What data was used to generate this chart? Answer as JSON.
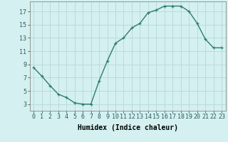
{
  "x": [
    0,
    1,
    2,
    3,
    4,
    5,
    6,
    7,
    8,
    9,
    10,
    11,
    12,
    13,
    14,
    15,
    16,
    17,
    18,
    19,
    20,
    21,
    22,
    23
  ],
  "y": [
    8.5,
    7.2,
    5.8,
    4.5,
    4.0,
    3.2,
    3.0,
    3.0,
    6.5,
    9.5,
    12.2,
    13.0,
    14.5,
    15.2,
    16.8,
    17.2,
    17.8,
    17.8,
    17.8,
    17.0,
    15.2,
    12.8,
    11.5,
    11.5
  ],
  "line_color": "#2d7d6e",
  "marker": "+",
  "marker_size": 3,
  "bg_color": "#d4f0f0",
  "grid_color": "#b8d8d8",
  "xlabel": "Humidex (Indice chaleur)",
  "xlabel_fontsize": 7,
  "ylabel_ticks": [
    3,
    5,
    7,
    9,
    11,
    13,
    15,
    17
  ],
  "xtick_labels": [
    "0",
    "1",
    "2",
    "3",
    "4",
    "5",
    "6",
    "7",
    "8",
    "9",
    "10",
    "11",
    "12",
    "13",
    "14",
    "15",
    "16",
    "17",
    "18",
    "19",
    "20",
    "21",
    "22",
    "23"
  ],
  "xlim": [
    -0.5,
    23.5
  ],
  "ylim": [
    2.0,
    18.5
  ],
  "line_width": 1.0,
  "tick_fontsize": 6.0
}
